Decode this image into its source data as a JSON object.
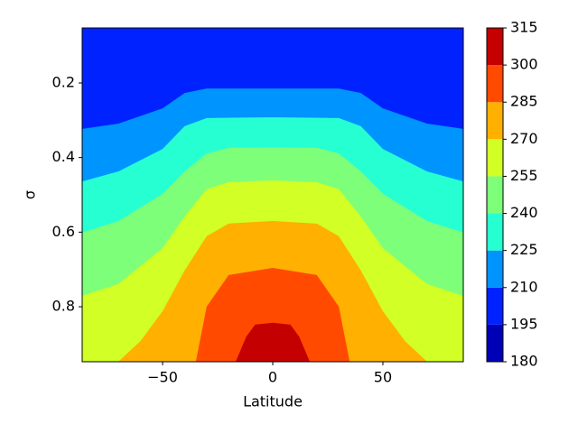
{
  "chart_data": {
    "type": "contourf",
    "x_label": "Latitude",
    "y_label": "σ",
    "xlim": [
      -86.5,
      86.5
    ],
    "ylim": [
      0.9475,
      0.0525
    ],
    "xticks": [
      {
        "value": -50,
        "label": "−50"
      },
      0,
      50
    ],
    "yticks": [
      0.2,
      0.4,
      0.6,
      0.8
    ],
    "levels": [
      180,
      195,
      210,
      225,
      240,
      255,
      270,
      285,
      300,
      315
    ],
    "colors": [
      "#0000b6",
      "#0022ff",
      "#0094ff",
      "#26ffd1",
      "#7dff7a",
      "#d1ff26",
      "#ffb000",
      "#ff4a00",
      "#c40000"
    ],
    "contours": [
      {
        "level": 210,
        "x": [
          -86.5,
          -70,
          -50,
          -40,
          -30,
          0,
          30,
          40,
          50,
          70,
          86.5
        ],
        "y": [
          0.323,
          0.309,
          0.268,
          0.227,
          0.215,
          0.215,
          0.215,
          0.227,
          0.268,
          0.309,
          0.323
        ]
      },
      {
        "level": 225,
        "x": [
          -86.5,
          -70,
          -50,
          -40,
          -30,
          0,
          30,
          40,
          50,
          70,
          86.5
        ],
        "y": [
          0.464,
          0.437,
          0.377,
          0.316,
          0.294,
          0.292,
          0.294,
          0.316,
          0.377,
          0.437,
          0.464
        ]
      },
      {
        "level": 240,
        "x": [
          -86.5,
          -70,
          -50,
          -40,
          -30,
          -20,
          0,
          20,
          30,
          40,
          50,
          70,
          86.5
        ],
        "y": [
          0.601,
          0.57,
          0.497,
          0.437,
          0.389,
          0.374,
          0.372,
          0.374,
          0.389,
          0.437,
          0.497,
          0.57,
          0.601
        ]
      },
      {
        "level": 255,
        "x": [
          -86.5,
          -70,
          -50,
          -40,
          -30,
          -20,
          0,
          20,
          30,
          40,
          50,
          70,
          86.5
        ],
        "y": [
          0.771,
          0.739,
          0.643,
          0.558,
          0.485,
          0.466,
          0.461,
          0.466,
          0.485,
          0.558,
          0.643,
          0.739,
          0.771
        ]
      },
      {
        "level": 270,
        "x": [
          -86.5,
          -70,
          -60,
          -50,
          -40,
          -30,
          -20,
          0,
          20,
          30,
          40,
          50,
          60,
          70,
          86.5
        ],
        "y": [
          0.95,
          0.947,
          0.892,
          0.812,
          0.703,
          0.611,
          0.577,
          0.57,
          0.577,
          0.611,
          0.703,
          0.812,
          0.892,
          0.947,
          0.95
        ]
      },
      {
        "level": 285,
        "x": [
          -86.5,
          -35,
          -30,
          -20,
          0,
          20,
          30,
          35,
          86.5
        ],
        "y": [
          0.95,
          0.95,
          0.8,
          0.715,
          0.696,
          0.715,
          0.8,
          0.95,
          0.95
        ]
      },
      {
        "level": 300,
        "x": [
          -86.5,
          -17,
          -12,
          -8,
          0,
          8,
          12,
          17,
          86.5
        ],
        "y": [
          0.95,
          0.95,
          0.88,
          0.848,
          0.843,
          0.848,
          0.88,
          0.95,
          0.95
        ]
      }
    ]
  }
}
